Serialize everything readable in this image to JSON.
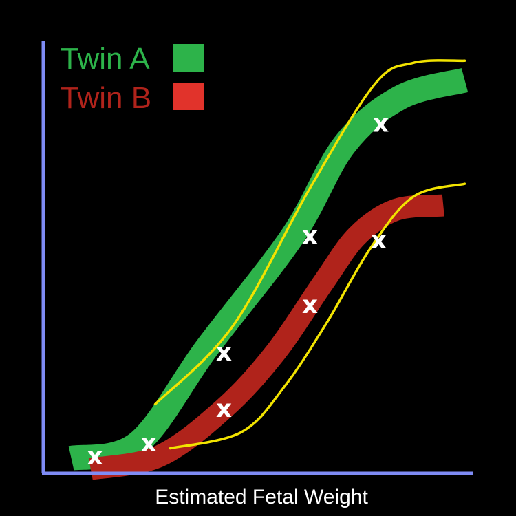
{
  "chart_data": {
    "type": "line",
    "title": "",
    "xlabel": "Estimated Fetal Weight",
    "ylabel": "",
    "xlim": [
      0,
      10
    ],
    "ylim": [
      0,
      10
    ],
    "grid": false,
    "legend_position": "top-left",
    "series": [
      {
        "name": "Twin A",
        "color": "#2db34a",
        "points": [
          [
            0.65,
            0.35
          ],
          [
            2.2,
            0.7
          ],
          [
            3.8,
            2.9
          ],
          [
            5.8,
            5.5
          ],
          [
            7.0,
            7.6
          ],
          [
            8.3,
            8.7
          ],
          [
            9.8,
            9.1
          ]
        ],
        "markers": [
          [
            1.2,
            0.4
          ],
          [
            2.45,
            0.7
          ],
          [
            4.2,
            2.8
          ],
          [
            6.2,
            5.5
          ],
          [
            7.85,
            8.1
          ]
        ]
      },
      {
        "name": "Twin B",
        "color": "#b0231b",
        "points": [
          [
            1.1,
            0.1
          ],
          [
            2.7,
            0.4
          ],
          [
            4.2,
            1.5
          ],
          [
            5.4,
            2.8
          ],
          [
            6.5,
            4.4
          ],
          [
            7.3,
            5.5
          ],
          [
            8.2,
            6.1
          ],
          [
            9.3,
            6.2
          ]
        ],
        "markers": [
          [
            4.2,
            1.5
          ],
          [
            6.2,
            3.9
          ],
          [
            7.8,
            5.4
          ]
        ]
      }
    ],
    "reference_curves": {
      "color": "#f2e300",
      "upper": [
        [
          2.6,
          1.6
        ],
        [
          4.4,
          3.4
        ],
        [
          6.2,
          6.6
        ],
        [
          7.7,
          9.0
        ],
        [
          8.6,
          9.5
        ],
        [
          9.8,
          9.55
        ]
      ],
      "lower": [
        [
          2.95,
          0.58
        ],
        [
          4.6,
          0.95
        ],
        [
          5.6,
          2.0
        ],
        [
          6.6,
          3.5
        ],
        [
          7.6,
          5.2
        ],
        [
          8.6,
          6.4
        ],
        [
          9.8,
          6.7
        ]
      ]
    },
    "marker_symbol": "x"
  }
}
